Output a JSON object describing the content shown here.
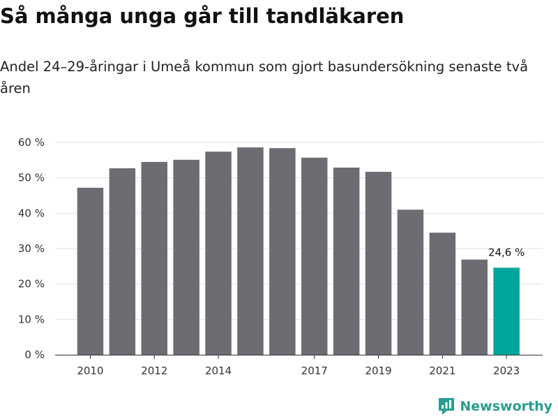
{
  "header": {
    "title": "Så många unga går till tandläkaren",
    "subtitle": "Andel 24–29-åringar i Umeå kommun som gjort basundersökning senaste två åren"
  },
  "brand": {
    "name": "Newsworthy",
    "icon": "newsworthy-logo-icon",
    "color": "#2a9d8f"
  },
  "colors": {
    "bar": "#6d6c72",
    "highlight": "#00a59b",
    "grid": "#e2e2e2",
    "axis": "#333333"
  },
  "chart_data": {
    "type": "bar",
    "title": "Så många unga går till tandläkaren",
    "subtitle": "Andel 24–29-åringar i Umeå kommun som gjort basundersökning senaste två åren",
    "xlabel": "",
    "ylabel": "",
    "categories": [
      "2010",
      "2011",
      "2012",
      "2013",
      "2014",
      "2015",
      "2016",
      "2017",
      "2018",
      "2019",
      "2020",
      "2021",
      "2022",
      "2023"
    ],
    "x_tick_labels": [
      "2010",
      "",
      "2012",
      "",
      "2014",
      "",
      "",
      "2017",
      "",
      "2019",
      "",
      "2021",
      "",
      "2023"
    ],
    "values": [
      47.2,
      52.7,
      54.5,
      55.1,
      57.4,
      58.6,
      58.4,
      55.7,
      52.9,
      51.7,
      41.0,
      34.5,
      26.9,
      24.6
    ],
    "highlight_index": 13,
    "data_labels": [
      {
        "index": 13,
        "text": "24,6 %"
      }
    ],
    "ylim": [
      0,
      60
    ],
    "yticks": [
      0,
      10,
      20,
      30,
      40,
      50,
      60
    ],
    "ytick_labels": [
      "0 %",
      "10 %",
      "20 %",
      "30 %",
      "40 %",
      "50 %",
      "60 %"
    ],
    "grid": true,
    "legend": "none"
  }
}
